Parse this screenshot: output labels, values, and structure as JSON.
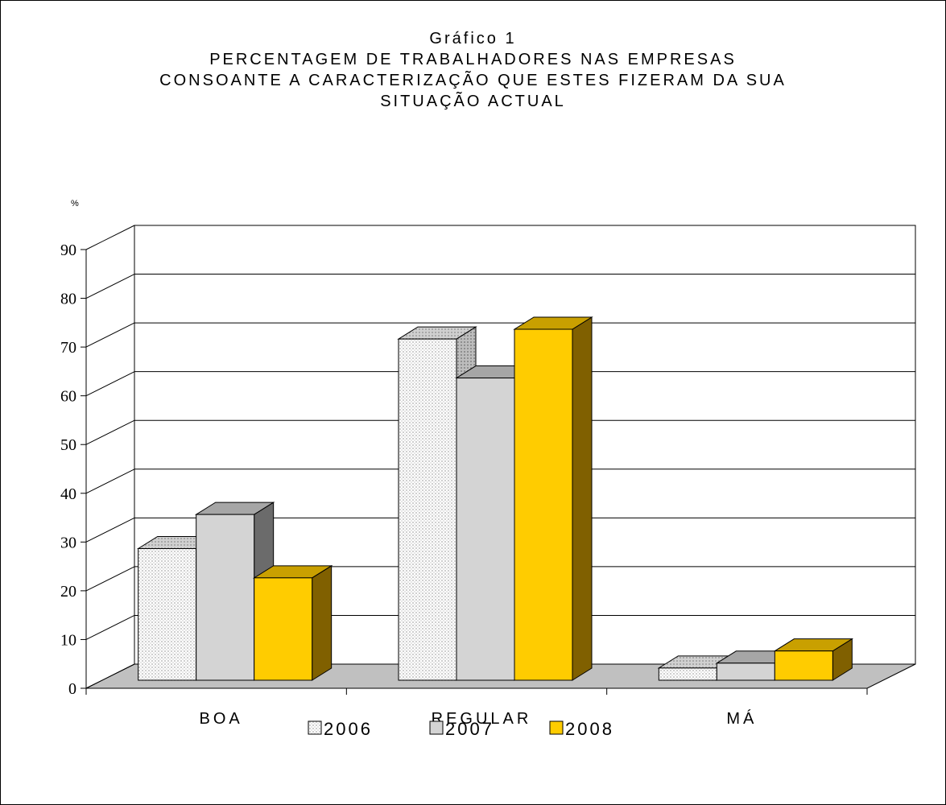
{
  "chart_data": {
    "type": "bar",
    "title_lines": [
      "Gráfico 1",
      "PERCENTAGEM DE TRABALHADORES NAS EMPRESAS",
      "CONSOANTE A CARACTERIZAÇÃO QUE ESTES FIZERAM DA SUA",
      "SITUAÇÃO ACTUAL"
    ],
    "ylabel": "%",
    "xlabel": "",
    "ylim": [
      0,
      90
    ],
    "yticks": [
      0,
      10,
      20,
      30,
      40,
      50,
      60,
      70,
      80,
      90
    ],
    "categories": [
      "BOA",
      "REGULAR",
      "MÁ"
    ],
    "series": [
      {
        "name": "2006",
        "values": [
          27,
          70,
          2.5
        ],
        "color": "#f4f4f4",
        "pattern": "checker"
      },
      {
        "name": "2007",
        "values": [
          34,
          62,
          3.5
        ],
        "color": "#d4d4d4",
        "pattern": "solid"
      },
      {
        "name": "2008",
        "values": [
          21,
          72,
          6
        ],
        "color": "#ffcc00",
        "pattern": "solid"
      }
    ],
    "grid": true,
    "legend_position": "bottom",
    "style": "3d-clustered-column"
  }
}
